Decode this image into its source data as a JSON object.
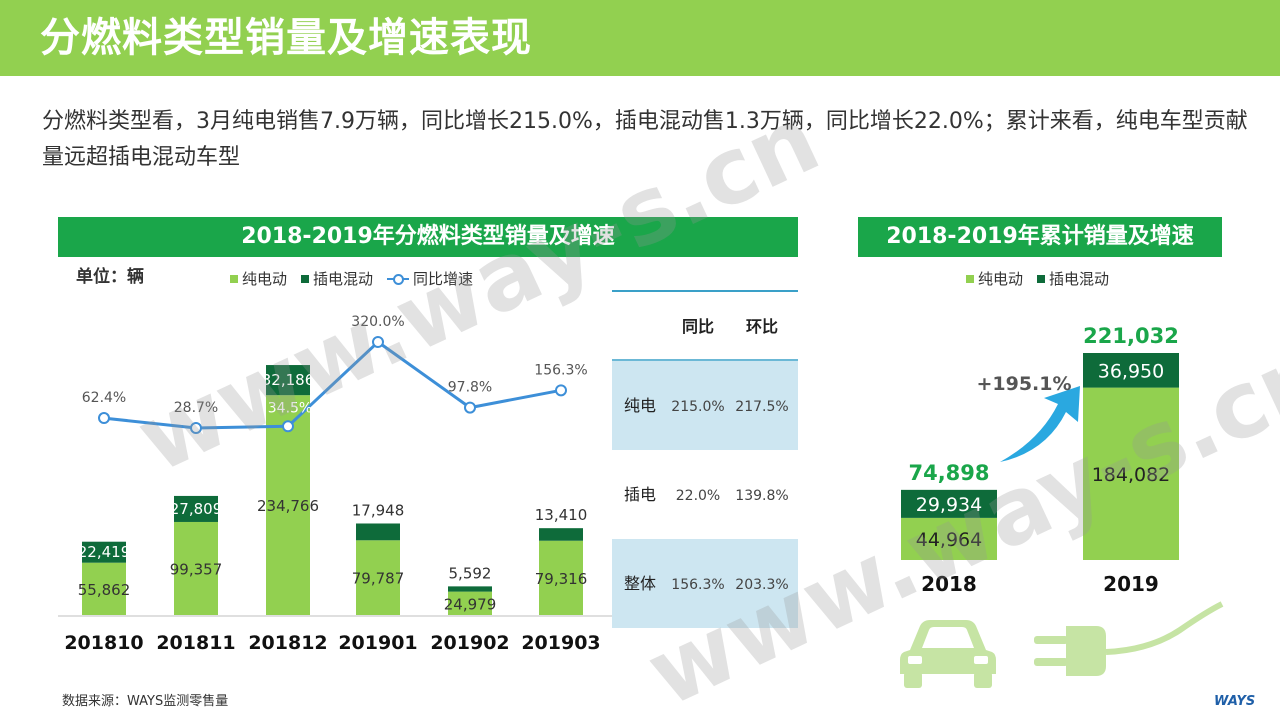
{
  "page": {
    "title": "分燃料类型销量及增速表现",
    "summary": "分燃料类型看，3月纯电销售7.9万辆，同比增长215.0%，插电混动售1.3万辆，同比增长22.0%；累计来看，纯电车型贡献量远超插电混动车型",
    "source": "数据来源：WAYS监测零售量",
    "logo": "WAYS",
    "watermark": "www.way-s.cn"
  },
  "colors": {
    "header_green": "#92d050",
    "panel_green": "#1aa64a",
    "bev": "#92d050",
    "phev": "#0e6b3a",
    "yoy_line": "#3d8fd8",
    "table_band": "#cde6f1"
  },
  "left_panel": {
    "title": "2018-2019年分燃料类型销量及增速",
    "unit": "单位：辆",
    "legend": [
      "纯电动",
      "插电混动",
      "同比增速"
    ]
  },
  "right_panel": {
    "title": "2018-2019年累计销量及增速",
    "legend": [
      "纯电动",
      "插电混动"
    ],
    "growth": "+195.1%"
  },
  "chart_data": [
    {
      "type": "bar",
      "stacked": true,
      "title": "2018-2019年分燃料类型销量及增速",
      "categories": [
        "201810",
        "201811",
        "201812",
        "201901",
        "201902",
        "201903"
      ],
      "series": [
        {
          "name": "纯电动",
          "values": [
            55862,
            99357,
            234766,
            79787,
            24979,
            79316
          ]
        },
        {
          "name": "插电混动",
          "values": [
            22419,
            27809,
            32186,
            17948,
            5592,
            13410
          ]
        }
      ],
      "line_series": {
        "name": "同比增速",
        "values": [
          62.4,
          28.7,
          34.5,
          320.0,
          97.8,
          156.3
        ],
        "labels": [
          "62.4%",
          "28.7%",
          "34.5%",
          "320.0%",
          "97.8%",
          "156.3%"
        ]
      },
      "value_labels": {
        "bev": [
          "55,862",
          "99,357",
          "234,766",
          "79,787",
          "24,979",
          "79,316"
        ],
        "phev": [
          "22,419",
          "27,809",
          "32,186",
          "17,948",
          "5,592",
          "13,410"
        ]
      },
      "ylabel": "单位：辆",
      "grid": false,
      "legend_position": "top"
    },
    {
      "type": "table",
      "columns": [
        "",
        "同比",
        "环比"
      ],
      "rows": [
        [
          "纯电",
          "215.0%",
          "217.5%"
        ],
        [
          "插电",
          "22.0%",
          "139.8%"
        ],
        [
          "整体",
          "156.3%",
          "203.3%"
        ]
      ]
    },
    {
      "type": "bar",
      "stacked": true,
      "title": "2018-2019年累计销量及增速",
      "categories": [
        "2018",
        "2019"
      ],
      "series": [
        {
          "name": "纯电动",
          "values": [
            44964,
            184082
          ]
        },
        {
          "name": "插电混动",
          "values": [
            29934,
            36950
          ]
        }
      ],
      "totals": [
        74898,
        221032
      ],
      "total_labels": [
        "74,898",
        "221,032"
      ],
      "value_labels": {
        "bev": [
          "44,964",
          "184,082"
        ],
        "phev": [
          "29,934",
          "36,950"
        ]
      },
      "growth_label": "+195.1%",
      "grid": false,
      "legend_position": "top"
    }
  ]
}
